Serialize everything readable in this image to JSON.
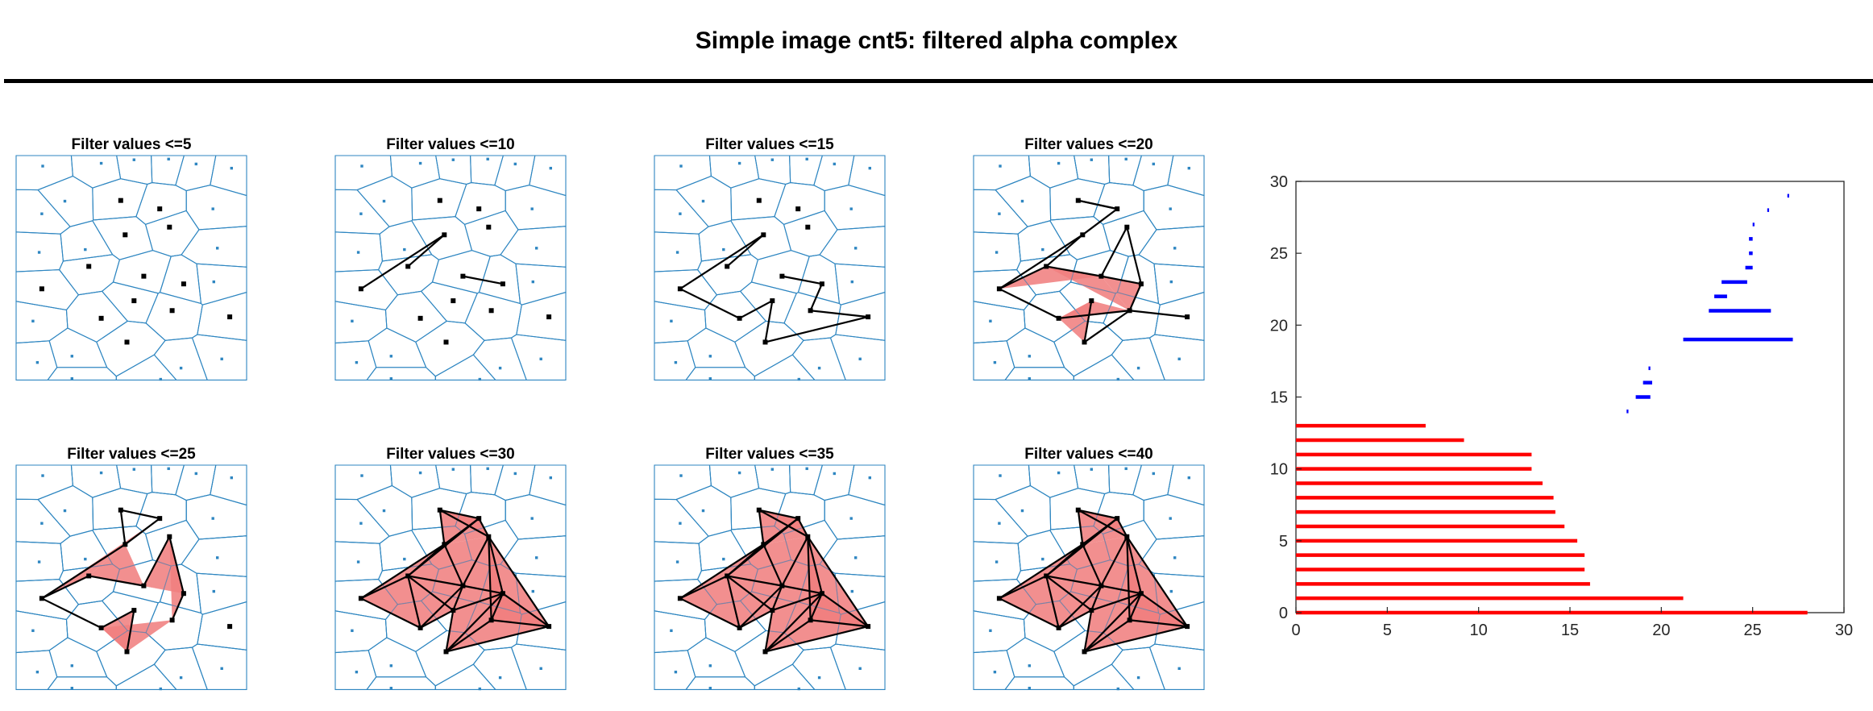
{
  "title": "Simple image cnt5: filtered alpha complex",
  "colors": {
    "voronoi": "#2e86c1",
    "fill": "#f07f7f",
    "edge": "#000000",
    "dim0": "#ff0000",
    "dim1": "#0000ff"
  },
  "sites": [
    [
      3.0,
      1.5
    ],
    [
      9.6,
      1.1
    ],
    [
      13.3,
      0.6
    ],
    [
      17.2,
      0.5
    ],
    [
      20.3,
      1.2
    ],
    [
      24.3,
      1.8
    ],
    [
      2.9,
      8.3
    ],
    [
      5.5,
      6.5
    ],
    [
      11.8,
      6.4
    ],
    [
      16.2,
      7.6
    ],
    [
      22.2,
      7.6
    ],
    [
      2.6,
      13.8
    ],
    [
      7.8,
      13.4
    ],
    [
      12.3,
      11.3
    ],
    [
      17.3,
      10.2
    ],
    [
      22.7,
      13.2
    ],
    [
      2.9,
      19.0
    ],
    [
      8.2,
      15.8
    ],
    [
      14.4,
      17.2
    ],
    [
      18.9,
      18.3
    ],
    [
      22.3,
      18.0
    ],
    [
      1.9,
      23.6
    ],
    [
      9.6,
      23.2
    ],
    [
      13.3,
      20.7
    ],
    [
      17.6,
      22.1
    ],
    [
      24.1,
      23.0
    ],
    [
      2.4,
      29.5
    ],
    [
      6.3,
      28.6
    ],
    [
      12.5,
      26.6
    ],
    [
      18.6,
      30.3
    ],
    [
      23.2,
      29.0
    ],
    [
      6.3,
      31.8
    ],
    [
      16.3,
      31.9
    ]
  ],
  "core_ids": [
    8,
    9,
    13,
    14,
    16,
    17,
    18,
    19,
    22,
    23,
    24,
    25,
    28
  ],
  "panels": [
    {
      "title": "Filter values <=5",
      "edges": [],
      "triangles": []
    },
    {
      "title": "Filter values <=10",
      "edges": [
        [
          13,
          16
        ],
        [
          13,
          17
        ],
        [
          18,
          19
        ]
      ],
      "triangles": []
    },
    {
      "title": "Filter values <=15",
      "edges": [
        [
          13,
          16
        ],
        [
          13,
          17
        ],
        [
          18,
          19
        ],
        [
          16,
          22
        ],
        [
          22,
          23
        ],
        [
          23,
          28
        ],
        [
          19,
          24
        ],
        [
          24,
          25
        ],
        [
          25,
          28
        ]
      ],
      "triangles": []
    },
    {
      "title": "Filter values <=20",
      "edges": [
        [
          16,
          22
        ],
        [
          16,
          17
        ],
        [
          13,
          17
        ],
        [
          13,
          9
        ],
        [
          18,
          19
        ],
        [
          19,
          24
        ],
        [
          24,
          25
        ],
        [
          23,
          28
        ],
        [
          24,
          28
        ],
        [
          22,
          24
        ],
        [
          8,
          9
        ],
        [
          14,
          19
        ],
        [
          17,
          18
        ],
        [
          18,
          14
        ],
        [
          9,
          8
        ],
        [
          13,
          16
        ]
      ],
      "triangles": [
        [
          16,
          17,
          18
        ],
        [
          17,
          18,
          19
        ],
        [
          18,
          19,
          24
        ],
        [
          17,
          18,
          24
        ],
        [
          22,
          24,
          23
        ],
        [
          22,
          23,
          28
        ]
      ]
    },
    {
      "title": "Filter values <=25",
      "edges": [
        [
          16,
          22
        ],
        [
          22,
          23
        ],
        [
          23,
          28
        ],
        [
          8,
          9
        ],
        [
          9,
          13
        ],
        [
          13,
          16
        ],
        [
          16,
          17
        ],
        [
          17,
          18
        ],
        [
          14,
          18
        ],
        [
          14,
          19
        ],
        [
          19,
          24
        ],
        [
          8,
          13
        ]
      ],
      "triangles": [
        [
          16,
          17,
          13
        ],
        [
          13,
          17,
          18
        ],
        [
          16,
          13,
          9
        ],
        [
          17,
          18,
          19
        ],
        [
          18,
          19,
          14
        ],
        [
          19,
          14,
          24
        ],
        [
          22,
          23,
          28
        ],
        [
          22,
          28,
          24
        ]
      ]
    },
    {
      "title": "Filter values <=30",
      "edges": [
        [
          16,
          22
        ],
        [
          22,
          23
        ],
        [
          23,
          28
        ],
        [
          28,
          25
        ],
        [
          25,
          24
        ],
        [
          24,
          14
        ],
        [
          14,
          9
        ],
        [
          9,
          8
        ],
        [
          8,
          13
        ],
        [
          13,
          16
        ],
        [
          16,
          17
        ],
        [
          17,
          18
        ],
        [
          18,
          19
        ],
        [
          19,
          24
        ],
        [
          13,
          17
        ],
        [
          13,
          18
        ],
        [
          18,
          14
        ],
        [
          14,
          19
        ],
        [
          18,
          23
        ],
        [
          23,
          19
        ],
        [
          19,
          28
        ],
        [
          22,
          18
        ],
        [
          17,
          22
        ],
        [
          9,
          13
        ],
        [
          8,
          14
        ],
        [
          19,
          25
        ],
        [
          24,
          28
        ],
        [
          17,
          23
        ],
        [
          14,
          25
        ],
        [
          9,
          17
        ]
      ],
      "triangles": [
        [
          16,
          22,
          17
        ],
        [
          16,
          13,
          17
        ],
        [
          13,
          9,
          17
        ],
        [
          9,
          8,
          13
        ],
        [
          8,
          14,
          9
        ],
        [
          13,
          17,
          18
        ],
        [
          13,
          18,
          14
        ],
        [
          9,
          13,
          14
        ],
        [
          17,
          18,
          22
        ],
        [
          22,
          23,
          18
        ],
        [
          18,
          23,
          19
        ],
        [
          23,
          28,
          19
        ],
        [
          19,
          28,
          25
        ],
        [
          19,
          24,
          25
        ],
        [
          14,
          19,
          24
        ],
        [
          18,
          19,
          14
        ],
        [
          14,
          24,
          25
        ]
      ]
    },
    {
      "title": "Filter values <=35",
      "edges": [
        [
          16,
          22
        ],
        [
          22,
          23
        ],
        [
          23,
          28
        ],
        [
          28,
          25
        ],
        [
          25,
          24
        ],
        [
          24,
          14
        ],
        [
          14,
          9
        ],
        [
          9,
          8
        ],
        [
          8,
          13
        ],
        [
          13,
          16
        ],
        [
          16,
          17
        ],
        [
          17,
          18
        ],
        [
          18,
          19
        ],
        [
          19,
          24
        ],
        [
          13,
          17
        ],
        [
          13,
          18
        ],
        [
          18,
          14
        ],
        [
          14,
          19
        ],
        [
          18,
          23
        ],
        [
          23,
          19
        ],
        [
          19,
          28
        ],
        [
          22,
          18
        ],
        [
          17,
          22
        ],
        [
          9,
          13
        ],
        [
          8,
          14
        ],
        [
          19,
          25
        ],
        [
          24,
          28
        ],
        [
          17,
          23
        ],
        [
          14,
          25
        ],
        [
          9,
          17
        ]
      ],
      "triangles": [
        [
          16,
          22,
          17
        ],
        [
          16,
          13,
          17
        ],
        [
          13,
          9,
          17
        ],
        [
          9,
          8,
          13
        ],
        [
          8,
          14,
          9
        ],
        [
          13,
          17,
          18
        ],
        [
          13,
          18,
          14
        ],
        [
          9,
          13,
          14
        ],
        [
          17,
          18,
          22
        ],
        [
          22,
          23,
          18
        ],
        [
          18,
          23,
          19
        ],
        [
          23,
          28,
          19
        ],
        [
          19,
          28,
          25
        ],
        [
          19,
          24,
          25
        ],
        [
          14,
          19,
          24
        ],
        [
          18,
          19,
          14
        ],
        [
          14,
          24,
          25
        ]
      ]
    },
    {
      "title": "Filter values <=40",
      "edges": [
        [
          16,
          22
        ],
        [
          22,
          23
        ],
        [
          23,
          28
        ],
        [
          28,
          25
        ],
        [
          25,
          24
        ],
        [
          24,
          14
        ],
        [
          14,
          9
        ],
        [
          9,
          8
        ],
        [
          8,
          13
        ],
        [
          13,
          16
        ],
        [
          16,
          17
        ],
        [
          17,
          18
        ],
        [
          18,
          19
        ],
        [
          19,
          24
        ],
        [
          13,
          17
        ],
        [
          13,
          18
        ],
        [
          18,
          14
        ],
        [
          14,
          19
        ],
        [
          18,
          23
        ],
        [
          23,
          19
        ],
        [
          19,
          28
        ],
        [
          22,
          18
        ],
        [
          17,
          22
        ],
        [
          9,
          13
        ],
        [
          8,
          14
        ],
        [
          19,
          25
        ],
        [
          24,
          28
        ],
        [
          17,
          23
        ],
        [
          14,
          25
        ],
        [
          9,
          17
        ]
      ],
      "triangles": [
        [
          16,
          22,
          17
        ],
        [
          16,
          13,
          17
        ],
        [
          13,
          9,
          17
        ],
        [
          9,
          8,
          13
        ],
        [
          8,
          14,
          9
        ],
        [
          13,
          17,
          18
        ],
        [
          13,
          18,
          14
        ],
        [
          9,
          13,
          14
        ],
        [
          17,
          18,
          22
        ],
        [
          22,
          23,
          18
        ],
        [
          18,
          23,
          19
        ],
        [
          23,
          28,
          19
        ],
        [
          19,
          28,
          25
        ],
        [
          19,
          24,
          25
        ],
        [
          14,
          19,
          24
        ],
        [
          18,
          19,
          14
        ],
        [
          14,
          24,
          25
        ]
      ]
    }
  ],
  "chart_data": {
    "type": "bar",
    "orientation": "horizontal",
    "xlim": [
      0,
      30
    ],
    "ylim": [
      0,
      30
    ],
    "xticks": [
      "0",
      "5",
      "10",
      "15",
      "20",
      "25",
      "30"
    ],
    "yticks": [
      "0",
      "5",
      "10",
      "15",
      "20",
      "25",
      "30"
    ],
    "grid": false,
    "series": [
      {
        "dimension": 0,
        "color": "#ff0000",
        "intervals": [
          [
            0,
            0,
            28.0
          ],
          [
            1,
            0,
            21.2
          ],
          [
            2,
            0,
            16.1
          ],
          [
            3,
            0,
            15.8
          ],
          [
            4,
            0,
            15.8
          ],
          [
            5,
            0,
            15.4
          ],
          [
            6,
            0,
            14.7
          ],
          [
            7,
            0,
            14.2
          ],
          [
            8,
            0,
            14.1
          ],
          [
            9,
            0,
            13.5
          ],
          [
            10,
            0,
            12.9
          ],
          [
            11,
            0,
            12.9
          ],
          [
            12,
            0,
            9.2
          ],
          [
            13,
            0,
            7.1
          ]
        ]
      },
      {
        "dimension": 1,
        "color": "#0000ff",
        "intervals": [
          [
            14,
            18.1,
            18.2
          ],
          [
            15,
            18.6,
            19.4
          ],
          [
            16,
            19.0,
            19.5
          ],
          [
            17,
            19.3,
            19.4
          ],
          [
            19,
            21.2,
            27.2
          ],
          [
            21,
            22.6,
            26.0
          ],
          [
            22,
            22.9,
            23.6
          ],
          [
            23,
            23.3,
            24.7
          ],
          [
            24,
            24.6,
            25.0
          ],
          [
            25,
            24.8,
            25.0
          ],
          [
            26,
            24.8,
            25.0
          ],
          [
            27,
            25.0,
            25.1
          ],
          [
            28,
            25.8,
            25.9
          ],
          [
            29,
            26.9,
            27.0
          ]
        ]
      }
    ]
  }
}
